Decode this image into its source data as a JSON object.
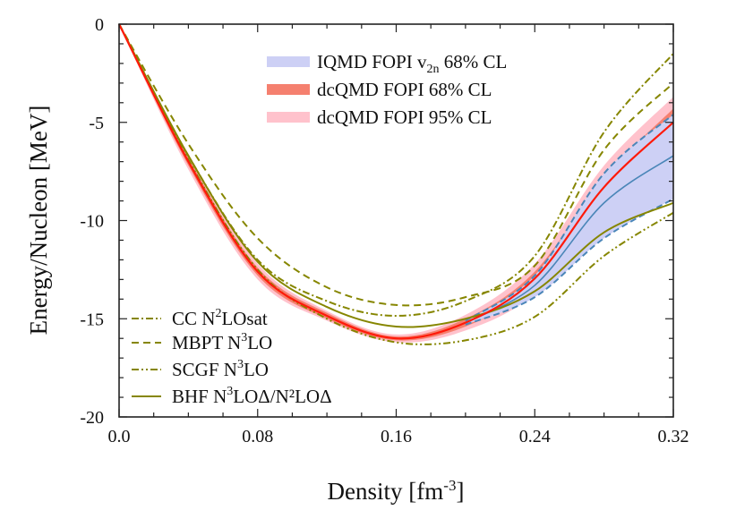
{
  "chart_data": {
    "type": "line",
    "xlabel": {
      "pre": "Density [fm",
      "sup": "-3",
      "post": "]"
    },
    "ylabel": "Energy/Nucleon [MeV]",
    "xlim": [
      0,
      0.32
    ],
    "ylim": [
      -20,
      0
    ],
    "xticks": [
      "0.0",
      "0.08",
      "0.16",
      "0.24",
      "0.32"
    ],
    "xtick_values": [
      0,
      0.08,
      0.16,
      0.24,
      0.32
    ],
    "yticks": [
      "0",
      "-5",
      "-10",
      "-15",
      "-20"
    ],
    "ytick_values": [
      0,
      -5,
      -10,
      -15,
      -20
    ],
    "grid": false,
    "colors": {
      "olive": "#868600",
      "blue_band": "#cdd0f5",
      "blue_line": "#4a86b8",
      "red": "#ff1a0a",
      "red68": "#f5806f",
      "red95": "#ffc2cc"
    },
    "bands": [
      {
        "name": {
          "pre": "IQMD FOPI v",
          "sub": "2n",
          "post": " 68% CL"
        },
        "color": "#cdd0f5",
        "x": [
          0.2,
          0.24,
          0.28,
          0.32
        ],
        "lower": [
          -15.3,
          -13.9,
          -10.9,
          -8.9
        ],
        "upper": [
          -15.1,
          -12.8,
          -7.6,
          -4.6
        ],
        "center": [
          -15.2,
          -13.3,
          -9.1,
          -6.7
        ]
      },
      {
        "name": {
          "pre": "dcQMD FOPI 68% CL",
          "sub": "",
          "post": ""
        },
        "color": "#f5806f",
        "x": [
          0,
          0.04,
          0.08,
          0.12,
          0.16,
          0.2,
          0.24,
          0.28,
          0.32
        ],
        "lower": [
          0,
          -7.2,
          -12.8,
          -15.0,
          -16.1,
          -15.4,
          -13.3,
          -8.8,
          -5.7
        ],
        "upper": [
          0,
          -6.8,
          -12.4,
          -14.7,
          -15.9,
          -15.0,
          -12.6,
          -7.8,
          -4.3
        ]
      },
      {
        "name": {
          "pre": "dcQMD FOPI 95% CL",
          "sub": "",
          "post": ""
        },
        "color": "#ffc2cc",
        "x": [
          0,
          0.04,
          0.08,
          0.12,
          0.16,
          0.2,
          0.24,
          0.28,
          0.32
        ],
        "lower": [
          0,
          -7.4,
          -13.0,
          -15.1,
          -16.2,
          -15.6,
          -13.7,
          -9.4,
          -6.3
        ],
        "upper": [
          0,
          -6.6,
          -12.2,
          -14.6,
          -15.8,
          -14.8,
          -12.2,
          -7.2,
          -3.7
        ]
      }
    ],
    "dcqmd_center": {
      "x": [
        0,
        0.04,
        0.08,
        0.12,
        0.16,
        0.2,
        0.24,
        0.28,
        0.32
      ],
      "y": [
        0,
        -7.0,
        -12.6,
        -14.85,
        -16.0,
        -15.2,
        -12.95,
        -8.3,
        -5.0
      ]
    },
    "series": [
      {
        "name": {
          "pre": "CC N",
          "sup": "2",
          "post": "LOsat"
        },
        "style": "dashdot",
        "x": [
          0,
          0.04,
          0.08,
          0.12,
          0.16,
          0.2,
          0.24,
          0.28,
          0.32
        ],
        "y": [
          0,
          -6.7,
          -12.0,
          -14.1,
          -14.85,
          -14.1,
          -11.8,
          -5.5,
          -1.5
        ]
      },
      {
        "name": {
          "pre": "MBPT N",
          "sup": "3",
          "post": "LO"
        },
        "style": "dashed",
        "x": [
          0,
          0.04,
          0.08,
          0.12,
          0.16,
          0.2,
          0.24,
          0.28,
          0.32
        ],
        "y": [
          0,
          -6.1,
          -10.9,
          -13.4,
          -14.3,
          -13.9,
          -12.3,
          -6.4,
          -3.0
        ]
      },
      {
        "name": {
          "pre": "SCGF N",
          "sup": "3",
          "post": "LO"
        },
        "style": "dashdotdot",
        "x": [
          0,
          0.04,
          0.08,
          0.12,
          0.16,
          0.2,
          0.24,
          0.28,
          0.32
        ],
        "y": [
          0,
          -6.9,
          -12.5,
          -15.0,
          -16.2,
          -16.1,
          -14.9,
          -11.8,
          -9.6
        ]
      },
      {
        "name": {
          "pre": "BHF N",
          "sup": "3",
          "post": "LOΔ/N²LOΔ"
        },
        "style": "solid",
        "x": [
          0,
          0.04,
          0.08,
          0.12,
          0.16,
          0.2,
          0.24,
          0.28,
          0.32
        ],
        "y": [
          0,
          -6.7,
          -12.1,
          -14.4,
          -15.4,
          -15.0,
          -13.6,
          -10.6,
          -9.1
        ]
      }
    ],
    "legend_placement": [
      "top-center",
      "bottom-left"
    ]
  }
}
